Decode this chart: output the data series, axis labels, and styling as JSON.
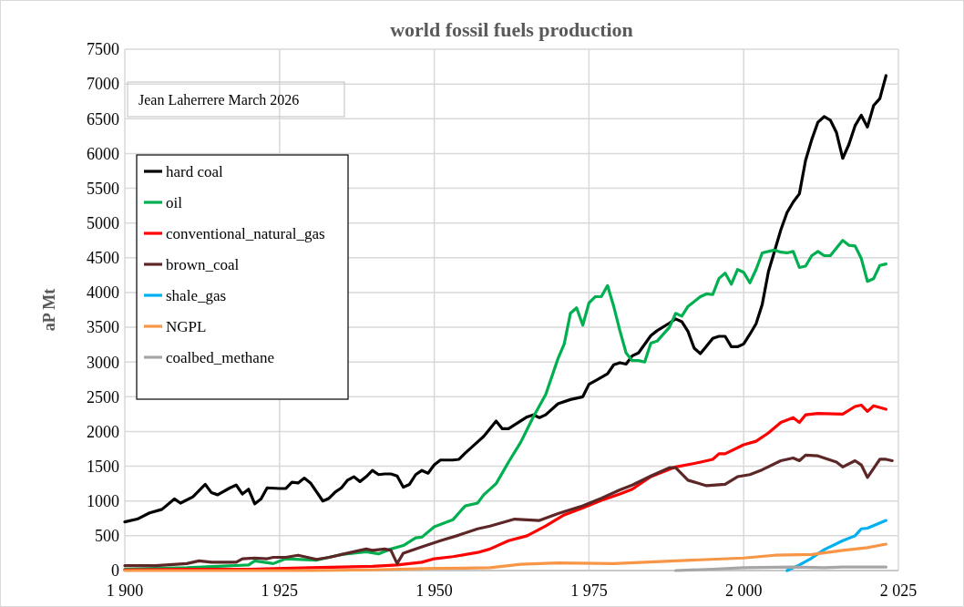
{
  "chart_data": {
    "type": "line",
    "title": "world fossil fuels production",
    "ylabel": "aP Mt",
    "annotations": [
      "Jean Laherrere March 2026"
    ],
    "xlim": [
      1900,
      2025
    ],
    "xticks": [
      {
        "value": 1900,
        "label": "1 900"
      },
      {
        "value": 1925,
        "label": "1 925"
      },
      {
        "value": 1950,
        "label": "1 950"
      },
      {
        "value": 1975,
        "label": "1 975"
      },
      {
        "value": 2000,
        "label": "2 000"
      },
      {
        "value": 2025,
        "label": "2 025"
      }
    ],
    "ylim": [
      0,
      7500
    ],
    "yticks": [
      0,
      500,
      1000,
      1500,
      2000,
      2500,
      3000,
      3500,
      4000,
      4500,
      5000,
      5500,
      6000,
      6500,
      7000,
      7500
    ],
    "grid": true,
    "legend": "top left",
    "marker": "none",
    "line_style": "solid",
    "series": [
      {
        "name": "hard coal",
        "color": "#000000",
        "x": [
          1900,
          1902,
          1904,
          1906,
          1908,
          1909,
          1911,
          1913,
          1914,
          1915,
          1917,
          1918,
          1919,
          1920,
          1921,
          1922,
          1923,
          1925,
          1926,
          1927,
          1928,
          1929,
          1930,
          1932,
          1933,
          1934,
          1935,
          1936,
          1937,
          1938,
          1939,
          1940,
          1941,
          1942,
          1943,
          1944,
          1945,
          1946,
          1947,
          1948,
          1949,
          1950,
          1951,
          1953,
          1954,
          1955,
          1957,
          1958,
          1960,
          1961,
          1962,
          1965,
          1966,
          1967,
          1968,
          1970,
          1972,
          1974,
          1975,
          1976,
          1978,
          1979,
          1980,
          1981,
          1982,
          1983,
          1985,
          1986,
          1988,
          1989,
          1990,
          1991,
          1992,
          1993,
          1994,
          1995,
          1996,
          1997,
          1998,
          1999,
          2000,
          2001,
          2002,
          2003,
          2004,
          2005,
          2006,
          2007,
          2008,
          2009,
          2010,
          2011,
          2012,
          2013,
          2014,
          2015,
          2016,
          2017,
          2018,
          2019,
          2020,
          2021,
          2022,
          2023
        ],
        "values": [
          700,
          740,
          830,
          880,
          1030,
          970,
          1060,
          1240,
          1120,
          1090,
          1190,
          1230,
          1100,
          1170,
          960,
          1030,
          1190,
          1180,
          1180,
          1270,
          1260,
          1330,
          1260,
          1000,
          1040,
          1130,
          1190,
          1300,
          1350,
          1280,
          1350,
          1440,
          1380,
          1390,
          1390,
          1360,
          1200,
          1240,
          1380,
          1440,
          1400,
          1520,
          1590,
          1590,
          1600,
          1690,
          1850,
          1930,
          2150,
          2040,
          2040,
          2210,
          2240,
          2200,
          2240,
          2400,
          2460,
          2500,
          2680,
          2730,
          2830,
          2960,
          2990,
          2970,
          3090,
          3130,
          3380,
          3450,
          3560,
          3620,
          3580,
          3440,
          3200,
          3120,
          3230,
          3340,
          3370,
          3370,
          3220,
          3220,
          3260,
          3400,
          3550,
          3830,
          4300,
          4600,
          4900,
          5150,
          5300,
          5420,
          5900,
          6200,
          6450,
          6530,
          6480,
          6300,
          5930,
          6130,
          6400,
          6550,
          6380,
          6690,
          6790,
          7120
        ]
      },
      {
        "name": "oil",
        "color": "#00b050",
        "x": [
          1900,
          1905,
          1910,
          1915,
          1920,
          1921,
          1924,
          1926,
          1931,
          1935,
          1939,
          1941,
          1943,
          1945,
          1947,
          1948,
          1950,
          1953,
          1955,
          1957,
          1958,
          1960,
          1962,
          1964,
          1966,
          1968,
          1970,
          1971,
          1972,
          1973,
          1974,
          1975,
          1976,
          1977,
          1978,
          1979,
          1980,
          1981,
          1982,
          1983,
          1984,
          1985,
          1986,
          1988,
          1989,
          1990,
          1991,
          1993,
          1994,
          1995,
          1996,
          1997,
          1998,
          1999,
          2000,
          2001,
          2002,
          2003,
          2004,
          2005,
          2006,
          2007,
          2008,
          2009,
          2010,
          2011,
          2012,
          2013,
          2014,
          2016,
          2017,
          2018,
          2019,
          2020,
          2021,
          2022,
          2023
        ],
        "values": [
          20,
          30,
          40,
          60,
          80,
          140,
          100,
          170,
          150,
          230,
          270,
          240,
          310,
          360,
          470,
          480,
          630,
          730,
          930,
          970,
          1090,
          1250,
          1560,
          1850,
          2210,
          2530,
          3050,
          3260,
          3700,
          3780,
          3530,
          3850,
          3940,
          3940,
          4100,
          3800,
          3450,
          3130,
          3020,
          3020,
          3000,
          3270,
          3300,
          3500,
          3700,
          3660,
          3800,
          3940,
          3980,
          3970,
          4200,
          4280,
          4120,
          4330,
          4290,
          4140,
          4330,
          4570,
          4590,
          4610,
          4580,
          4570,
          4590,
          4360,
          4380,
          4530,
          4590,
          4530,
          4530,
          4750,
          4680,
          4670,
          4490,
          4160,
          4200,
          4390,
          4410
        ]
      },
      {
        "name": "conventional_natural_gas",
        "color": "#ff0000",
        "x": [
          1900,
          1910,
          1920,
          1930,
          1940,
          1944,
          1948,
          1950,
          1953,
          1957,
          1959,
          1962,
          1965,
          1968,
          1971,
          1974,
          1977,
          1980,
          1982,
          1985,
          1989,
          1992,
          1995,
          1996,
          1997,
          2000,
          2002,
          2004,
          2006,
          2008,
          2009,
          2010,
          2012,
          2016,
          2018,
          2019,
          2020,
          2021,
          2023
        ],
        "values": [
          10,
          20,
          20,
          40,
          60,
          80,
          120,
          170,
          200,
          260,
          310,
          430,
          500,
          640,
          800,
          900,
          1010,
          1100,
          1170,
          1350,
          1490,
          1540,
          1600,
          1680,
          1680,
          1810,
          1860,
          1980,
          2130,
          2200,
          2130,
          2240,
          2260,
          2250,
          2360,
          2380,
          2290,
          2370,
          2320
        ]
      },
      {
        "name": "brown_coal",
        "color": "#5c2726",
        "x": [
          1900,
          1905,
          1910,
          1912,
          1914,
          1918,
          1919,
          1921,
          1923,
          1924,
          1926,
          1928,
          1931,
          1933,
          1936,
          1937,
          1939,
          1940,
          1942,
          1943,
          1944,
          1945,
          1948,
          1951,
          1954,
          1957,
          1959,
          1963,
          1967,
          1970,
          1974,
          1977,
          1980,
          1982,
          1985,
          1988,
          1989,
          1991,
          1994,
          1997,
          1999,
          2001,
          2003,
          2006,
          2008,
          2009,
          2010,
          2012,
          2015,
          2016,
          2018,
          2019,
          2020,
          2022,
          2023,
          2024
        ],
        "values": [
          70,
          70,
          100,
          140,
          120,
          120,
          170,
          180,
          170,
          190,
          190,
          220,
          160,
          190,
          250,
          270,
          310,
          290,
          310,
          290,
          100,
          250,
          340,
          430,
          510,
          600,
          640,
          740,
          720,
          820,
          930,
          1040,
          1160,
          1230,
          1360,
          1480,
          1480,
          1300,
          1220,
          1240,
          1350,
          1380,
          1450,
          1580,
          1620,
          1580,
          1660,
          1650,
          1560,
          1490,
          1580,
          1520,
          1340,
          1600,
          1600,
          1580
        ]
      },
      {
        "name": "shale_gas",
        "color": "#00b0f0",
        "x": [
          2007,
          2009,
          2011,
          2013,
          2016,
          2018,
          2019,
          2020,
          2023
        ],
        "values": [
          0,
          80,
          180,
          300,
          430,
          500,
          600,
          610,
          720
        ]
      },
      {
        "name": "NGPL",
        "color": "#f79646",
        "x": [
          1900,
          1930,
          1940,
          1950,
          1959,
          1964,
          1970,
          1979,
          1989,
          2000,
          2005,
          2011,
          2016,
          2020,
          2023
        ],
        "values": [
          0,
          0,
          10,
          30,
          40,
          90,
          110,
          100,
          140,
          180,
          220,
          230,
          290,
          330,
          380
        ]
      },
      {
        "name": "coalbed_methane",
        "color": "#a6a6a6",
        "x": [
          1989,
          1995,
          2000,
          2008,
          2013,
          2016,
          2023
        ],
        "values": [
          0,
          20,
          40,
          50,
          40,
          50,
          50
        ]
      }
    ]
  }
}
